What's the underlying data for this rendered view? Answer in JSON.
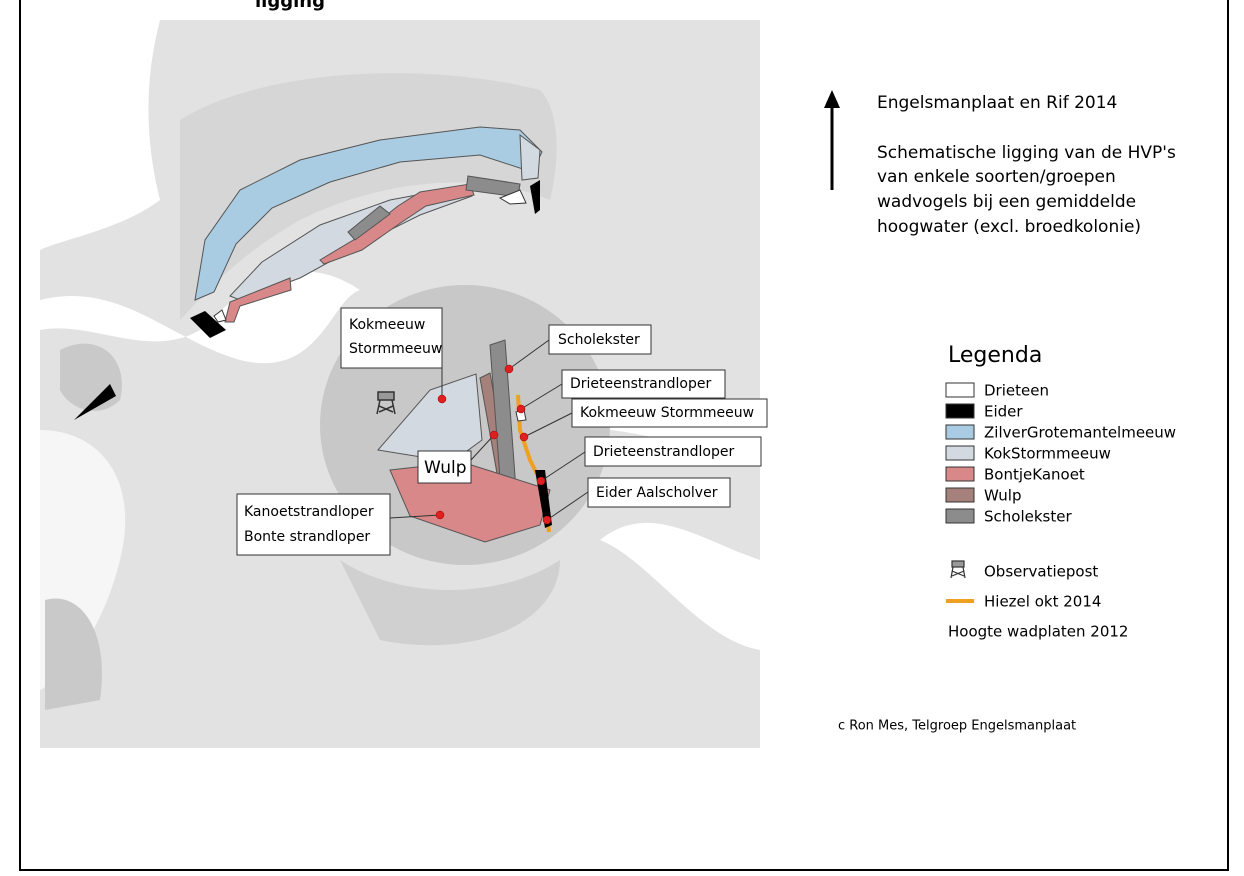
{
  "heading_fragment": "ligging",
  "title": "Engelsmanplaat en Rif 2014",
  "description": [
    "Schematische ligging van de HVP's",
    "van enkele soorten/groepen",
    "wadvogels bij een gemiddelde",
    "hoogwater (excl. broedkolonie)"
  ],
  "callouts": [
    {
      "lines": [
        "Kokmeeuw",
        "Stormmeeuw"
      ]
    },
    {
      "lines": [
        "Scholekster"
      ]
    },
    {
      "lines": [
        "Drieteenstrandloper"
      ]
    },
    {
      "lines": [
        "Kokmeeuw Stormmeeuw"
      ]
    },
    {
      "lines": [
        "Wulp"
      ]
    },
    {
      "lines": [
        "Drieteenstrandloper"
      ]
    },
    {
      "lines": [
        "Eider Aalscholver"
      ]
    },
    {
      "lines": [
        "Kanoetstrandloper",
        "Bonte strandloper"
      ]
    }
  ],
  "legend": {
    "title": "Legenda",
    "items": [
      "Drieteen",
      "Eider",
      "ZilverGrotemantelmeeuw",
      "KokStormmeeuw",
      "BontjeKanoet",
      "Wulp",
      "Scholekster",
      "Observatiepost",
      "Hiezel okt 2014",
      "Hoogte wadplaten 2012"
    ]
  },
  "credit": "c Ron Mes, Telgroep Engelsmanplaat"
}
